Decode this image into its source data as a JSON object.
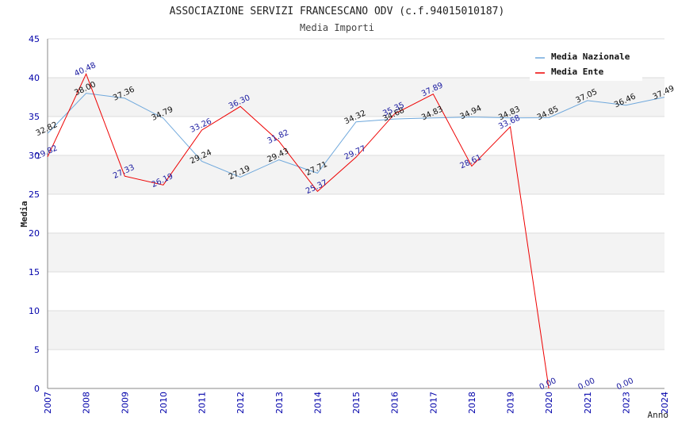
{
  "chart_data": {
    "type": "line",
    "title": "ASSOCIAZIONE SERVIZI FRANCESCANO ODV (c.f.94015010187)",
    "subtitle": "Media Importi",
    "xlabel": "Anno",
    "ylabel": "Media",
    "ylim": [
      0,
      45
    ],
    "yticks": [
      0,
      5,
      10,
      15,
      20,
      25,
      30,
      35,
      40,
      45
    ],
    "x": [
      "2007",
      "2008",
      "2009",
      "2010",
      "2011",
      "2012",
      "2013",
      "2014",
      "2015",
      "2016",
      "2017",
      "2018",
      "2019",
      "2020",
      "2021",
      "2023",
      "2024"
    ],
    "grid": true,
    "legend_position": "top-right",
    "series": [
      {
        "name": "Media Nazionale",
        "color": "#6fa8dc",
        "values": [
          32.82,
          38.0,
          37.36,
          34.79,
          29.24,
          27.19,
          29.43,
          27.71,
          34.32,
          34.68,
          34.83,
          34.94,
          34.83,
          34.85,
          37.05,
          36.46,
          37.49
        ],
        "labels": [
          "32.82",
          "38.00",
          "37.36",
          "34.79",
          "29.24",
          "27.19",
          "29.43",
          "27.71",
          "34.32",
          "34.68",
          "34.83",
          "34.94",
          "34.83",
          "34.85",
          "37.05",
          "36.46",
          "37.49"
        ]
      },
      {
        "name": "Media Ente",
        "color": "#ee0000",
        "values": [
          29.82,
          40.48,
          27.33,
          26.19,
          33.26,
          36.3,
          31.82,
          25.37,
          29.77,
          35.35,
          37.89,
          28.61,
          33.68,
          0.0,
          null,
          null,
          null
        ],
        "labels": [
          "29.82",
          "40.48",
          "27.33",
          "26.19",
          "33.26",
          "36.30",
          "31.82",
          "25.37",
          "29.77",
          "35.35",
          "37.89",
          "28.61",
          "33.68",
          "0.00",
          "0.00",
          "0.00",
          ""
        ]
      }
    ]
  }
}
